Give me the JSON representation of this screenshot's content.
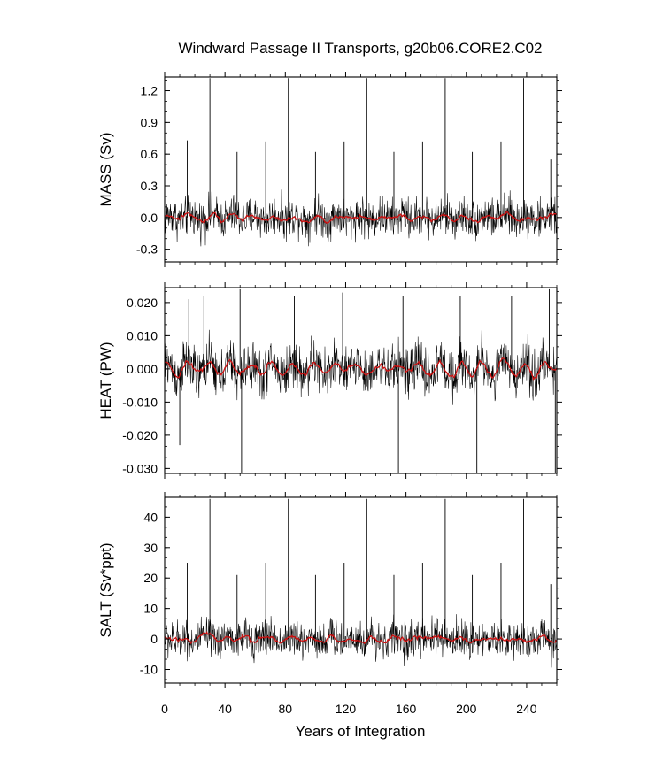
{
  "title": "Windward Passage II Transports, g20b06.CORE2.C02",
  "xlabel": "Years of Integration",
  "x_tick_labels": [
    "0",
    "40",
    "80",
    "120",
    "160",
    "200",
    "240"
  ],
  "colors": {
    "raw": "#000000",
    "smoothed": "#cc1111",
    "frame": "#000000"
  },
  "chart_data": [
    {
      "type": "line",
      "ylabel": "MASS (Sv)",
      "xlim": [
        0,
        260
      ],
      "ylim": [
        -0.42,
        1.33
      ],
      "yticks": [
        -0.3,
        0.0,
        0.3,
        0.6,
        0.9,
        1.2
      ],
      "ytick_labels": [
        "-0.3",
        "0.0",
        "0.3",
        "0.6",
        "0.9",
        "1.2"
      ],
      "noise_amplitude": 0.14,
      "smooth_amplitude": 0.025,
      "spikes": [
        {
          "x": 30,
          "y": 1.32
        },
        {
          "x": 82,
          "y": 1.32
        },
        {
          "x": 134,
          "y": 1.32
        },
        {
          "x": 186,
          "y": 1.32
        },
        {
          "x": 238,
          "y": 1.32
        },
        {
          "x": 15,
          "y": 0.73
        },
        {
          "x": 48,
          "y": 0.62
        },
        {
          "x": 67,
          "y": 0.72
        },
        {
          "x": 100,
          "y": 0.62
        },
        {
          "x": 119,
          "y": 0.72
        },
        {
          "x": 152,
          "y": 0.62
        },
        {
          "x": 171,
          "y": 0.72
        },
        {
          "x": 204,
          "y": 0.62
        },
        {
          "x": 223,
          "y": 0.72
        },
        {
          "x": 256,
          "y": 0.55
        }
      ],
      "series": [
        {
          "values_description_free": true,
          "role": "raw"
        },
        {
          "role": "smoothed"
        }
      ]
    },
    {
      "type": "line",
      "ylabel": "HEAT (PW)",
      "xlim": [
        0,
        260
      ],
      "ylim": [
        -0.0315,
        0.0245
      ],
      "yticks": [
        -0.03,
        -0.02,
        -0.01,
        0.0,
        0.01,
        0.02
      ],
      "ytick_labels": [
        "-0.030",
        "-0.020",
        "-0.010",
        "0.000",
        "0.010",
        "0.020"
      ],
      "noise_amplitude": 0.0055,
      "smooth_amplitude": 0.0022,
      "spikes": [
        {
          "x": 16,
          "y": 0.021
        },
        {
          "x": 26,
          "y": 0.022
        },
        {
          "x": 50,
          "y": 0.024
        },
        {
          "x": 51,
          "y": -0.0313
        },
        {
          "x": 86,
          "y": 0.022
        },
        {
          "x": 103,
          "y": -0.0313
        },
        {
          "x": 118,
          "y": 0.023
        },
        {
          "x": 155,
          "y": -0.0313
        },
        {
          "x": 158,
          "y": 0.022
        },
        {
          "x": 196,
          "y": 0.022
        },
        {
          "x": 207,
          "y": -0.0313
        },
        {
          "x": 230,
          "y": 0.022
        },
        {
          "x": 255,
          "y": 0.024
        },
        {
          "x": 259,
          "y": -0.0313
        },
        {
          "x": 10,
          "y": -0.023
        }
      ],
      "series": [
        {
          "role": "raw"
        },
        {
          "role": "smoothed"
        }
      ]
    },
    {
      "type": "line",
      "ylabel": "SALT (Sv*ppt)",
      "xlim": [
        0,
        260
      ],
      "ylim": [
        -14.5,
        46.5
      ],
      "yticks": [
        -10,
        0,
        10,
        20,
        30,
        40
      ],
      "ytick_labels": [
        "-10",
        "0",
        "10",
        "20",
        "30",
        "40"
      ],
      "noise_amplitude": 4.6,
      "smooth_amplitude": 0.9,
      "spikes": [
        {
          "x": 30,
          "y": 46
        },
        {
          "x": 82,
          "y": 46
        },
        {
          "x": 134,
          "y": 46
        },
        {
          "x": 186,
          "y": 46
        },
        {
          "x": 238,
          "y": 46
        },
        {
          "x": 15,
          "y": 25
        },
        {
          "x": 48,
          "y": 21
        },
        {
          "x": 67,
          "y": 25
        },
        {
          "x": 100,
          "y": 21
        },
        {
          "x": 119,
          "y": 25
        },
        {
          "x": 152,
          "y": 21
        },
        {
          "x": 171,
          "y": 25
        },
        {
          "x": 204,
          "y": 21
        },
        {
          "x": 223,
          "y": 25
        },
        {
          "x": 256,
          "y": 18
        }
      ],
      "series": [
        {
          "role": "raw"
        },
        {
          "role": "smoothed"
        }
      ]
    }
  ]
}
